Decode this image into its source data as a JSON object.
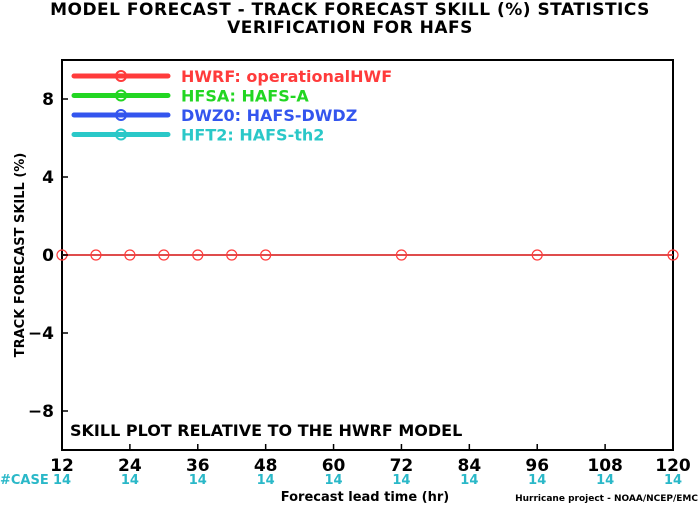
{
  "title": "MODEL FORECAST - TRACK FORECAST SKILL (%) STATISTICS",
  "subtitle": "VERIFICATION FOR HAFS",
  "chart_data": {
    "type": "line",
    "title": "MODEL FORECAST - TRACK FORECAST SKILL (%) STATISTICS",
    "subtitle": "VERIFICATION FOR HAFS",
    "xlabel": "Forecast lead time (hr)",
    "ylabel": "TRACK FORECAST SKILL (%)",
    "xlim": [
      12,
      120
    ],
    "ylim": [
      -10,
      10
    ],
    "x_ticks": [
      12,
      24,
      36,
      48,
      60,
      72,
      84,
      96,
      108,
      120
    ],
    "y_ticks": [
      -8,
      -4,
      0,
      4,
      8
    ],
    "y_tick_labels": [
      "−8",
      "−4",
      "0",
      "4",
      "8"
    ],
    "grid": false,
    "legend_position": "top-left",
    "series": [
      {
        "name": "HWRF: operationalHWF",
        "color": "#ff3b3b",
        "x": [
          12,
          18,
          24,
          30,
          36,
          42,
          48,
          72,
          96,
          120
        ],
        "y": [
          0,
          0,
          0,
          0,
          0,
          0,
          0,
          0,
          0,
          0
        ]
      },
      {
        "name": "HFSA: HAFS-A",
        "color": "#22d622",
        "x": [],
        "y": []
      },
      {
        "name": "DWZ0: HAFS-DWDZ",
        "color": "#3355ee",
        "x": [],
        "y": []
      },
      {
        "name": "HFT2: HAFS-th2",
        "color": "#2ac8c8",
        "x": [],
        "y": []
      }
    ],
    "annotation": "SKILL PLOT RELATIVE TO THE HWRF MODEL",
    "case_label": "#CASE",
    "case_counts": [
      {
        "x": 12,
        "n": "14"
      },
      {
        "x": 24,
        "n": "14"
      },
      {
        "x": 36,
        "n": "14"
      },
      {
        "x": 48,
        "n": "14"
      },
      {
        "x": 60,
        "n": "14"
      },
      {
        "x": 72,
        "n": "14"
      },
      {
        "x": 84,
        "n": "14"
      },
      {
        "x": 96,
        "n": "14"
      },
      {
        "x": 108,
        "n": "14"
      },
      {
        "x": 120,
        "n": "14"
      }
    ],
    "case_color": "#2ab8c8",
    "credit": "Hurricane project - NOAA/NCEP/EMC"
  }
}
